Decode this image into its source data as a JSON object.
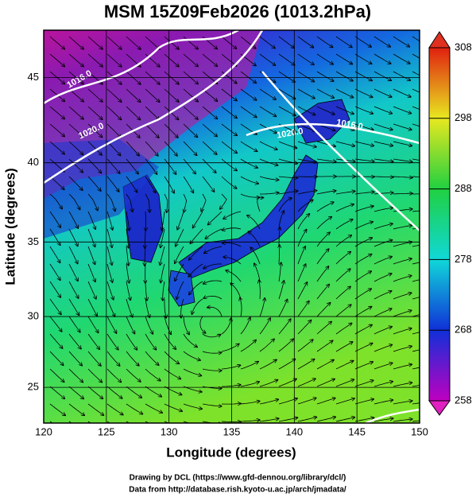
{
  "title": "MSM 15Z09Feb2026 (1013.2hPa)",
  "map": {
    "x_label": "Longitude (degrees)",
    "y_label": "Latitude  (degrees)",
    "xlim": [
      120,
      150
    ],
    "ylim": [
      22.4,
      47.6
    ],
    "xticks": [
      120,
      125,
      130,
      135,
      140,
      145,
      150
    ],
    "yticks": [
      25,
      30,
      35,
      40,
      45
    ],
    "projection": "mercator",
    "grid": true,
    "contour_labels": [
      "1016.0",
      "1020.0",
      "1016.0",
      "1020.0"
    ]
  },
  "colorbar": {
    "lim": [
      258,
      308
    ],
    "ticks": [
      258,
      268,
      278,
      288,
      298,
      308
    ]
  },
  "credits": [
    "Drawing by DCL (https://www.gfd-dennou.org/library/dcl/)",
    "Data from http://database.rish.kyoto-u.ac.jp/arch/jmadata/"
  ]
}
